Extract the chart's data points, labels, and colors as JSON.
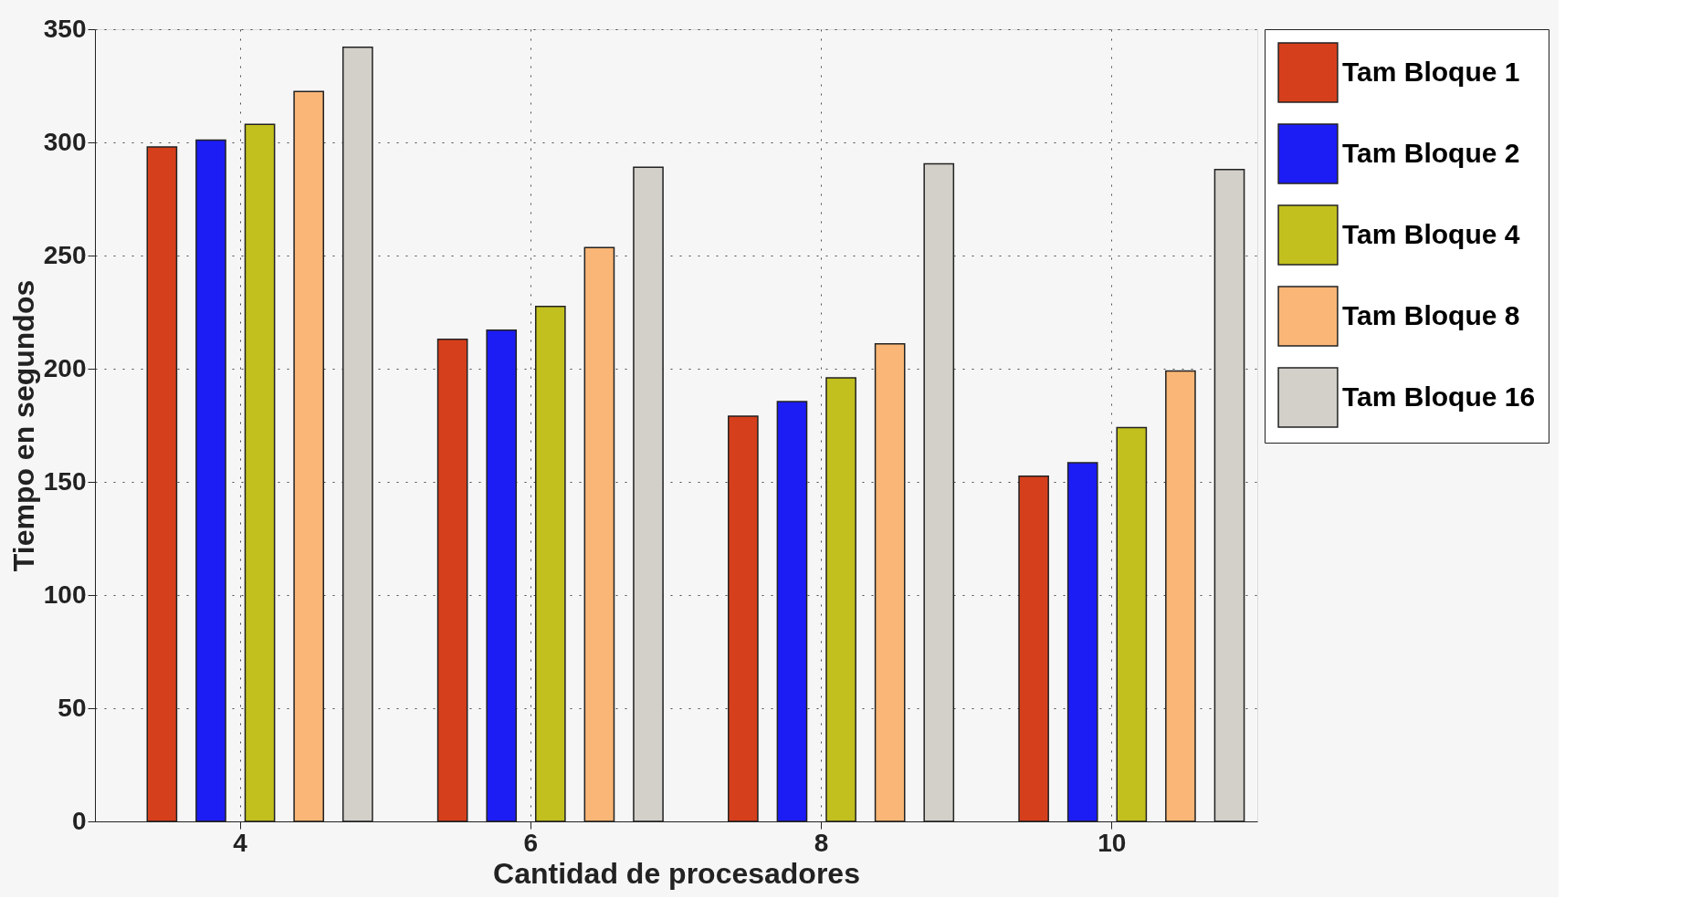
{
  "chart_data": {
    "type": "bar",
    "xlabel": "Cantidad de procesadores",
    "ylabel": "Tiempo en segundos",
    "categories": [
      "4",
      "6",
      "8",
      "10"
    ],
    "series": [
      {
        "name": "Tam Bloque 1",
        "color": "#d63f1c",
        "values": [
          298,
          213,
          179,
          152.5
        ]
      },
      {
        "name": "Tam Bloque 2",
        "color": "#1c1cf5",
        "values": [
          301,
          217,
          185.5,
          158.5
        ]
      },
      {
        "name": "Tam Bloque 4",
        "color": "#c2c01e",
        "values": [
          308,
          227.5,
          196,
          174
        ]
      },
      {
        "name": "Tam Bloque 8",
        "color": "#f9b676",
        "values": [
          322.5,
          253.5,
          211,
          199
        ]
      },
      {
        "name": "Tam Bloque 16",
        "color": "#d3d0ca",
        "values": [
          342,
          289,
          290.5,
          288
        ]
      }
    ],
    "ylim": [
      0,
      350
    ],
    "yticks": [
      0,
      50,
      100,
      150,
      200,
      250,
      300,
      350
    ],
    "grid": true,
    "legend": "right"
  }
}
